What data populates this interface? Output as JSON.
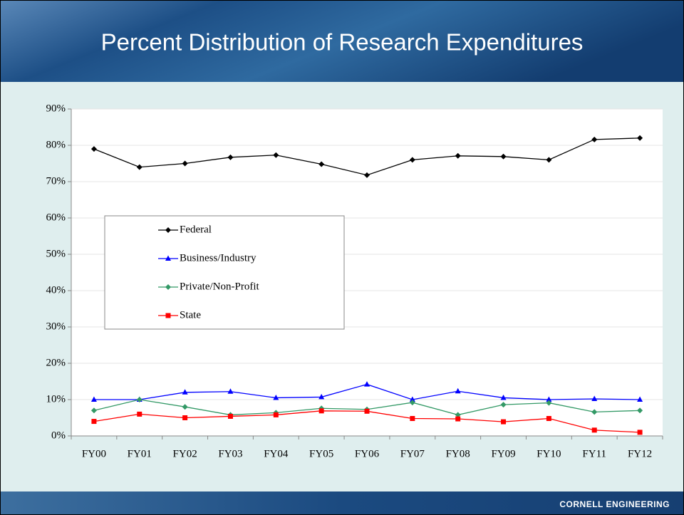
{
  "chart_data": {
    "type": "line",
    "title": "Percent Distribution of Research Expenditures",
    "categories": [
      "FY00",
      "FY01",
      "FY02",
      "FY03",
      "FY04",
      "FY05",
      "FY06",
      "FY07",
      "FY08",
      "FY09",
      "FY10",
      "FY11",
      "FY12"
    ],
    "series": [
      {
        "name": "Federal",
        "color": "#000000",
        "marker": "diamond",
        "values": [
          79,
          74,
          75,
          76.7,
          77.3,
          74.8,
          71.8,
          76,
          77.1,
          76.9,
          76,
          81.6,
          82
        ]
      },
      {
        "name": "Business/Industry",
        "color": "#0000ff",
        "marker": "triangle",
        "values": [
          10,
          10,
          12,
          12.2,
          10.5,
          10.7,
          14.2,
          10,
          12.3,
          10.5,
          10,
          10.2,
          10
        ]
      },
      {
        "name": "Private/Non-Profit",
        "color": "#339966",
        "marker": "diamond",
        "values": [
          7,
          10,
          8,
          5.8,
          6.4,
          7.6,
          7.3,
          9.2,
          5.8,
          8.6,
          9.1,
          6.6,
          7
        ]
      },
      {
        "name": "State",
        "color": "#ff0000",
        "marker": "square",
        "values": [
          4,
          6,
          5,
          5.4,
          5.8,
          6.9,
          6.8,
          4.8,
          4.7,
          3.9,
          4.8,
          1.6,
          1
        ]
      }
    ],
    "ylim": [
      0,
      90
    ],
    "yticks": [
      {
        "value": 0,
        "label": "0%"
      },
      {
        "value": 10,
        "label": "10%"
      },
      {
        "value": 20,
        "label": "20%"
      },
      {
        "value": 30,
        "label": "30%"
      },
      {
        "value": 40,
        "label": "40%"
      },
      {
        "value": 50,
        "label": "50%"
      },
      {
        "value": 60,
        "label": "60%"
      },
      {
        "value": 70,
        "label": "70%"
      },
      {
        "value": 80,
        "label": "80%"
      },
      {
        "value": 90,
        "label": "90%"
      }
    ],
    "grid": true,
    "legend": "left"
  },
  "footer": "CORNELL ENGINEERING"
}
